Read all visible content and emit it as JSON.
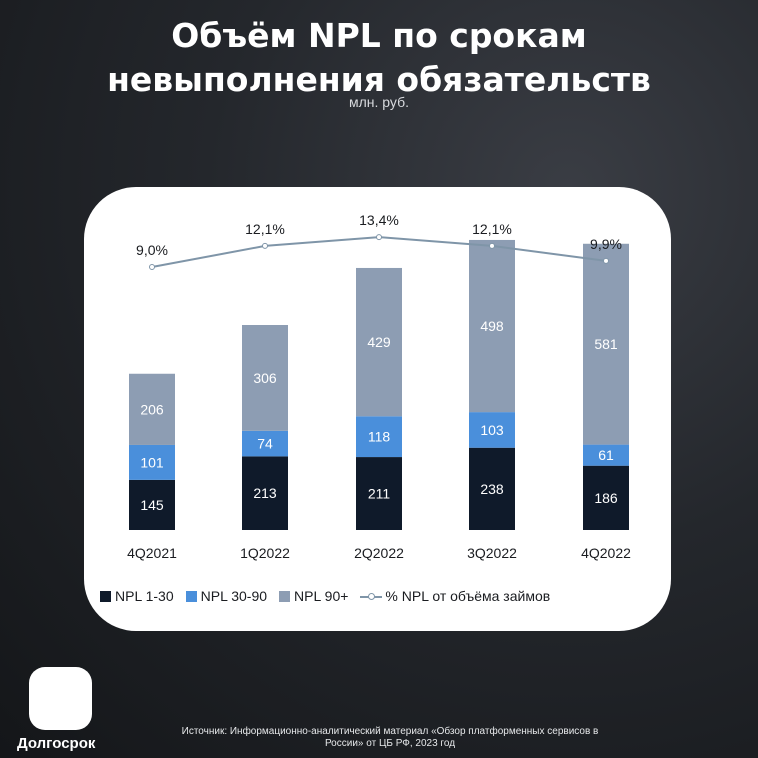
{
  "page": {
    "title_line1": "Объём NPL по срокам",
    "title_line2": "невыполнения обязательств",
    "subtitle": "млн. руб.",
    "source_line1": "Источник: Информационно-аналитический  материал  «Обзор платформенных сервисов  в",
    "source_line2": "России» от ЦБ РФ, 2023 год",
    "logo_text": "Долгосрок"
  },
  "chart_data": {
    "type": "bar",
    "stacked": true,
    "title": "Объём NPL по срокам невыполнения обязательств",
    "units": "млн. руб.",
    "categories": [
      "4Q2021",
      "1Q2022",
      "2Q2022",
      "3Q2022",
      "4Q2022"
    ],
    "series": [
      {
        "name": "NPL 1-30",
        "values": [
          145,
          213,
          211,
          238,
          186
        ],
        "color": "#0f1a2a"
      },
      {
        "name": "NPL 30-90",
        "values": [
          101,
          74,
          118,
          103,
          61
        ],
        "color": "#4a8fdb"
      },
      {
        "name": "NPL 90+",
        "values": [
          206,
          306,
          429,
          498,
          581
        ],
        "color": "#8d9db3"
      }
    ],
    "line_series": {
      "name": "% NPL от объёма займов",
      "values": [
        9.0,
        12.1,
        13.4,
        12.1,
        9.9
      ],
      "labels": [
        "9,0%",
        "12,1%",
        "13,4%",
        "12,1%",
        "9,9%"
      ],
      "color": "#7f95a8"
    },
    "ylim": [
      0,
      840
    ],
    "legend_position": "bottom"
  }
}
